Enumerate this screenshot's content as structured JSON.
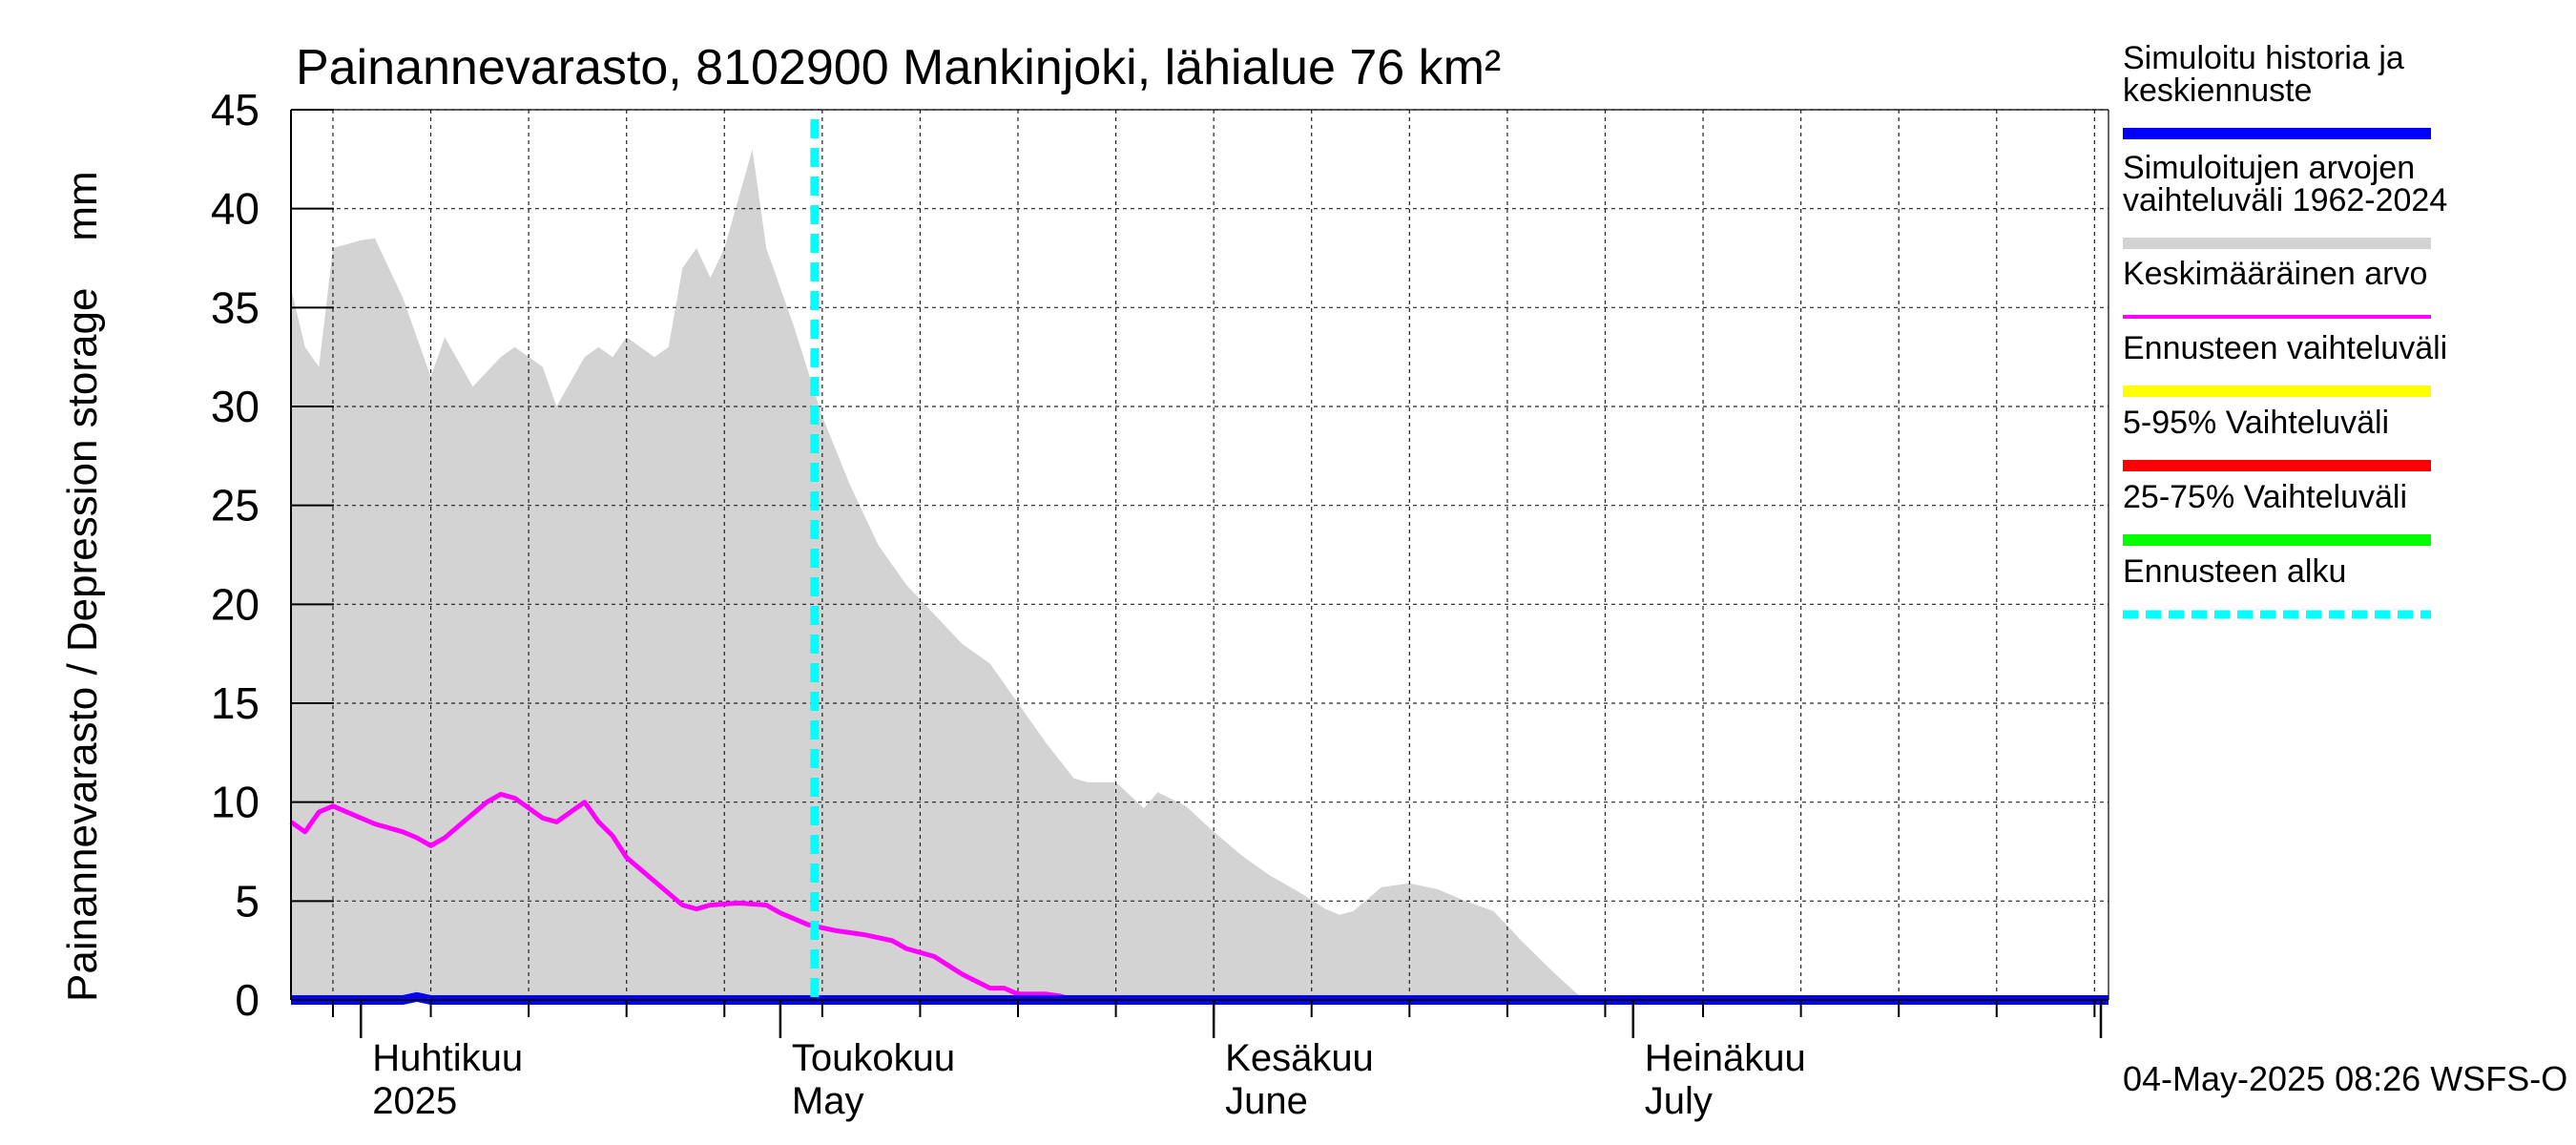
{
  "chart_data": {
    "type": "area",
    "title": "Painannevarasto, 8102900 Mankinjoki, lähialue 76 km²",
    "ylabel": "Painannevarasto / Depression storage    mm",
    "xlabel": "",
    "ylim": [
      0,
      45
    ],
    "y_ticks": [
      0,
      5,
      10,
      15,
      20,
      25,
      30,
      35,
      40,
      45
    ],
    "x_range": [
      "2025-03-27",
      "2025-08-04"
    ],
    "grid": true,
    "legend_position": "right",
    "month_labels": [
      {
        "date": "2025-04-01",
        "fi": "Huhtikuu",
        "en": "2025"
      },
      {
        "date": "2025-05-01",
        "fi": "Toukokuu",
        "en": "May"
      },
      {
        "date": "2025-06-01",
        "fi": "Kesäkuu",
        "en": "June"
      },
      {
        "date": "2025-07-01",
        "fi": "Heinäkuu",
        "en": "July"
      }
    ],
    "forecast_start": "2025-05-04",
    "legend": [
      {
        "label": "Simuloitu historia ja keskiennuste",
        "color": "#0000ff",
        "style": "solid-thick"
      },
      {
        "label": "Simuloitujen arvojen vaihteluväli 1962-2024",
        "color": "#d3d3d3",
        "style": "solid-thick"
      },
      {
        "label": "Keskimääräinen arvo",
        "color": "#ff00ff",
        "style": "solid"
      },
      {
        "label": "Ennusteen vaihteluväli",
        "color": "#ffff00",
        "style": "solid-thick"
      },
      {
        "label": "5-95% Vaihteluväli",
        "color": "#ff0000",
        "style": "solid-thick"
      },
      {
        "label": "25-75% Vaihteluväli",
        "color": "#00ff00",
        "style": "solid-thick"
      },
      {
        "label": "Ennusteen alku",
        "color": "#00ffff",
        "style": "dashed"
      }
    ],
    "footer": "04-May-2025 08:26 WSFS-O",
    "series": [
      {
        "name": "Simuloitujen arvojen vaihteluväli 1962-2024",
        "kind": "band",
        "color": "#d3d3d3",
        "points": [
          [
            "2025-03-27",
            36
          ],
          [
            "2025-03-28",
            33
          ],
          [
            "2025-03-29",
            32
          ],
          [
            "2025-03-30",
            38
          ],
          [
            "2025-04-01",
            38.4
          ],
          [
            "2025-04-02",
            38.5
          ],
          [
            "2025-04-04",
            35.5
          ],
          [
            "2025-04-06",
            31.5
          ],
          [
            "2025-04-07",
            33.5
          ],
          [
            "2025-04-09",
            31
          ],
          [
            "2025-04-11",
            32.5
          ],
          [
            "2025-04-12",
            33
          ],
          [
            "2025-04-14",
            32
          ],
          [
            "2025-04-15",
            30
          ],
          [
            "2025-04-17",
            32.5
          ],
          [
            "2025-04-18",
            33
          ],
          [
            "2025-04-19",
            32.5
          ],
          [
            "2025-04-20",
            33.5
          ],
          [
            "2025-04-22",
            32.5
          ],
          [
            "2025-04-23",
            33
          ],
          [
            "2025-04-24",
            37
          ],
          [
            "2025-04-25",
            38
          ],
          [
            "2025-04-26",
            36.5
          ],
          [
            "2025-04-27",
            38
          ],
          [
            "2025-04-29",
            43
          ],
          [
            "2025-04-30",
            38
          ],
          [
            "2025-05-02",
            34
          ],
          [
            "2025-05-04",
            29.5
          ],
          [
            "2025-05-06",
            26
          ],
          [
            "2025-05-08",
            23
          ],
          [
            "2025-05-10",
            21
          ],
          [
            "2025-05-12",
            19.5
          ],
          [
            "2025-05-14",
            18
          ],
          [
            "2025-05-16",
            17
          ],
          [
            "2025-05-18",
            15
          ],
          [
            "2025-05-20",
            13
          ],
          [
            "2025-05-22",
            11.2
          ],
          [
            "2025-05-23",
            11
          ],
          [
            "2025-05-25",
            11
          ],
          [
            "2025-05-27",
            9.7
          ],
          [
            "2025-05-28",
            10.5
          ],
          [
            "2025-05-30",
            9.8
          ],
          [
            "2025-06-01",
            8.5
          ],
          [
            "2025-06-03",
            7.3
          ],
          [
            "2025-06-05",
            6.3
          ],
          [
            "2025-06-07",
            5.5
          ],
          [
            "2025-06-09",
            4.6
          ],
          [
            "2025-06-10",
            4.3
          ],
          [
            "2025-06-11",
            4.5
          ],
          [
            "2025-06-13",
            5.7
          ],
          [
            "2025-06-15",
            5.9
          ],
          [
            "2025-06-17",
            5.6
          ],
          [
            "2025-06-19",
            5.0
          ],
          [
            "2025-06-21",
            4.5
          ],
          [
            "2025-06-23",
            3.0
          ],
          [
            "2025-06-25",
            1.6
          ],
          [
            "2025-06-27",
            0.3
          ],
          [
            "2025-06-28",
            0
          ],
          [
            "2025-08-04",
            0
          ]
        ]
      },
      {
        "name": "Keskimääräinen arvo",
        "kind": "line",
        "color": "#ff00ff",
        "points": [
          [
            "2025-03-27",
            9.0
          ],
          [
            "2025-03-28",
            8.5
          ],
          [
            "2025-03-29",
            9.5
          ],
          [
            "2025-03-30",
            9.8
          ],
          [
            "2025-04-01",
            9.2
          ],
          [
            "2025-04-02",
            8.9
          ],
          [
            "2025-04-04",
            8.5
          ],
          [
            "2025-04-05",
            8.2
          ],
          [
            "2025-04-06",
            7.8
          ],
          [
            "2025-04-07",
            8.2
          ],
          [
            "2025-04-08",
            8.8
          ],
          [
            "2025-04-10",
            10.0
          ],
          [
            "2025-04-11",
            10.4
          ],
          [
            "2025-04-12",
            10.2
          ],
          [
            "2025-04-13",
            9.7
          ],
          [
            "2025-04-14",
            9.2
          ],
          [
            "2025-04-15",
            9.0
          ],
          [
            "2025-04-16",
            9.5
          ],
          [
            "2025-04-17",
            10.0
          ],
          [
            "2025-04-18",
            9.0
          ],
          [
            "2025-04-19",
            8.3
          ],
          [
            "2025-04-20",
            7.2
          ],
          [
            "2025-04-22",
            6.0
          ],
          [
            "2025-04-24",
            4.8
          ],
          [
            "2025-04-25",
            4.6
          ],
          [
            "2025-04-26",
            4.8
          ],
          [
            "2025-04-28",
            4.9
          ],
          [
            "2025-04-30",
            4.8
          ],
          [
            "2025-05-01",
            4.4
          ],
          [
            "2025-05-03",
            3.8
          ],
          [
            "2025-05-05",
            3.5
          ],
          [
            "2025-05-07",
            3.3
          ],
          [
            "2025-05-09",
            3.0
          ],
          [
            "2025-05-10",
            2.6
          ],
          [
            "2025-05-12",
            2.2
          ],
          [
            "2025-05-14",
            1.3
          ],
          [
            "2025-05-16",
            0.6
          ],
          [
            "2025-05-17",
            0.6
          ],
          [
            "2025-05-18",
            0.3
          ],
          [
            "2025-05-20",
            0.3
          ],
          [
            "2025-05-21",
            0.2
          ],
          [
            "2025-05-22",
            0
          ],
          [
            "2025-08-04",
            0
          ]
        ]
      },
      {
        "name": "Simuloitu historia ja keskiennuste",
        "kind": "line",
        "color": "#0000ff",
        "points": [
          [
            "2025-03-27",
            0
          ],
          [
            "2025-04-04",
            0
          ],
          [
            "2025-04-05",
            0.15
          ],
          [
            "2025-04-06",
            0
          ],
          [
            "2025-08-04",
            0
          ]
        ]
      }
    ]
  }
}
